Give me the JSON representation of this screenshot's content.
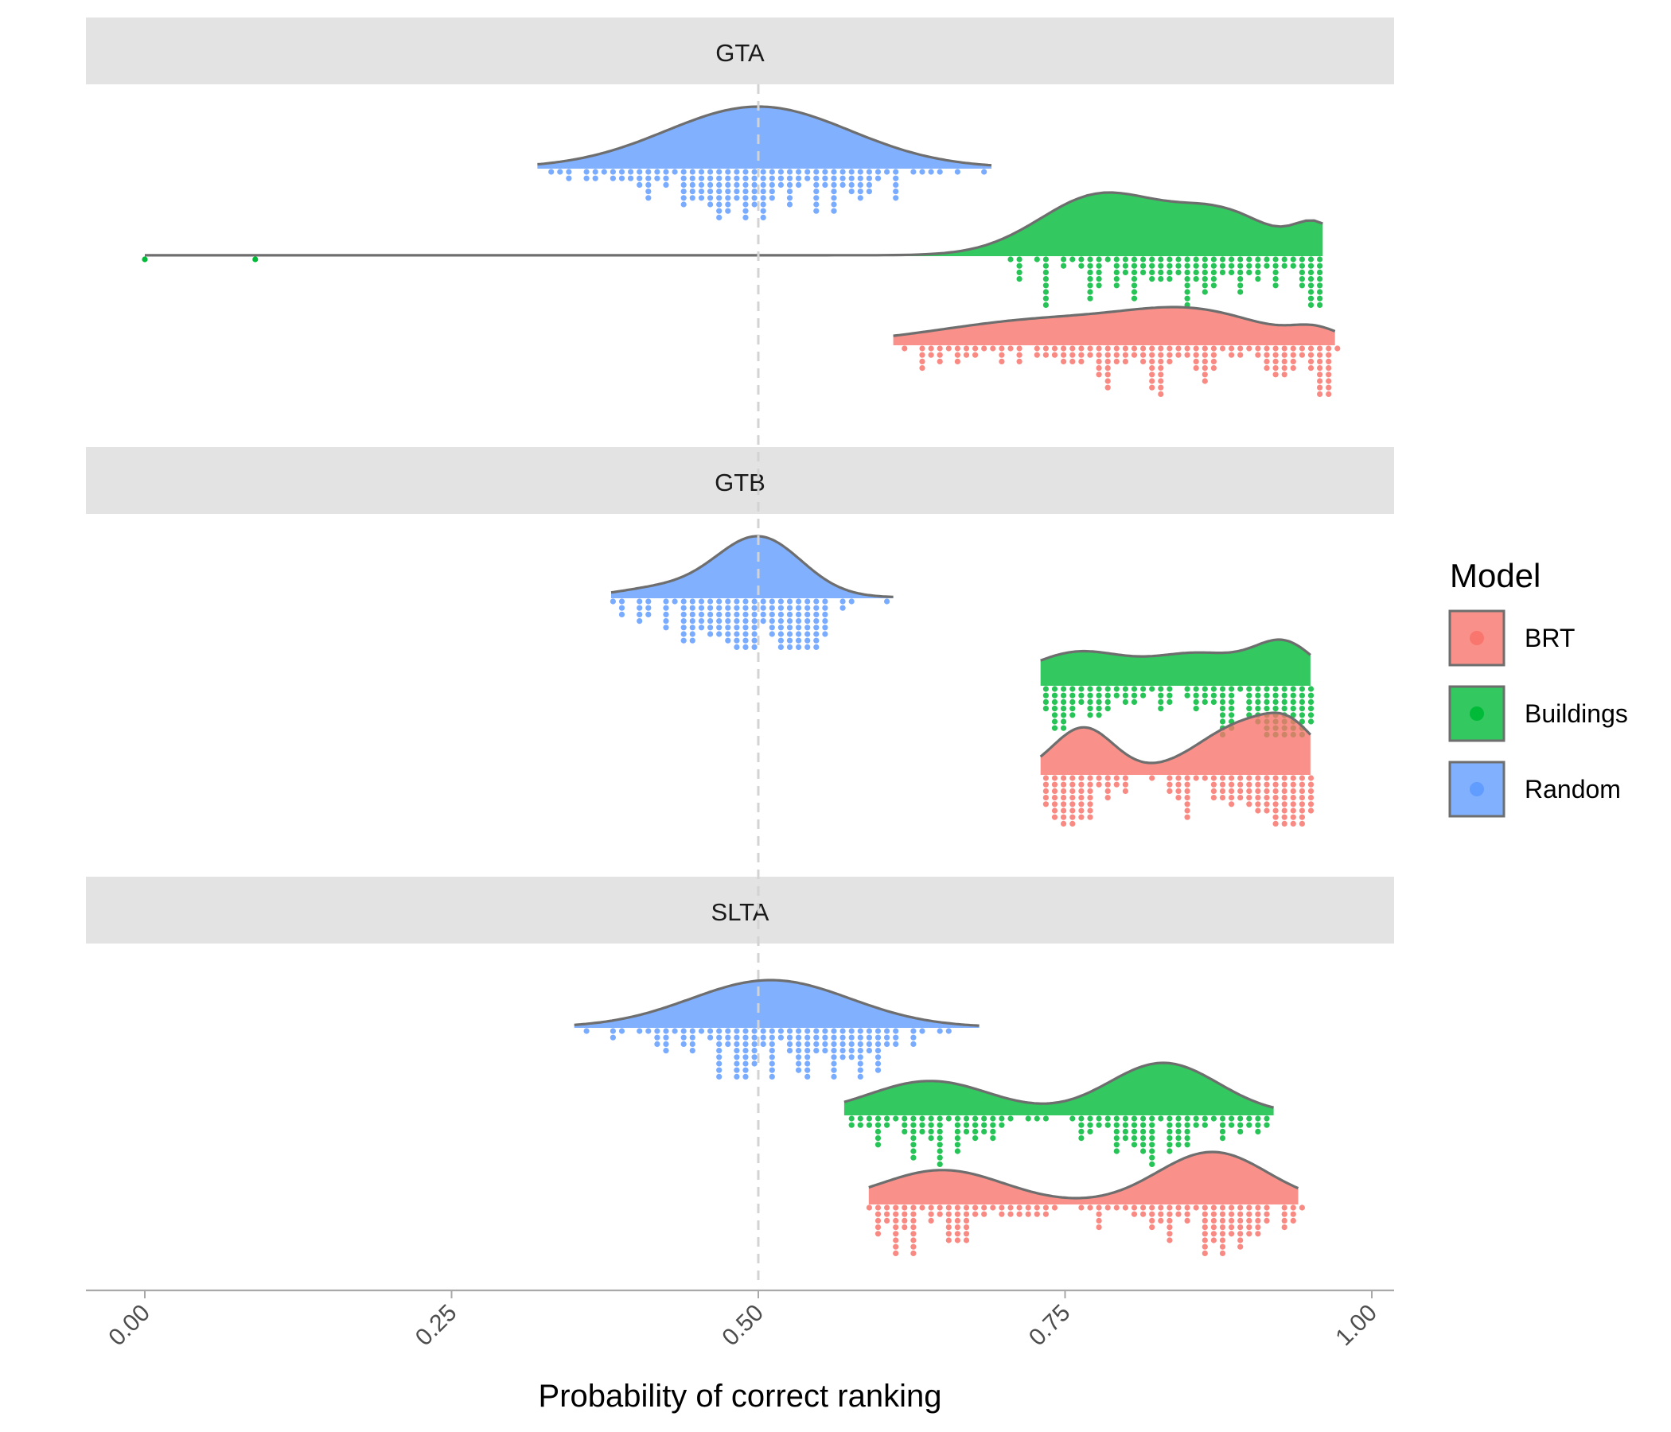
{
  "chart_data": {
    "type": "raincloud",
    "xlabel": "Probability of correct ranking",
    "xlim": [
      0,
      1
    ],
    "xticks": [
      0,
      0.25,
      0.5,
      0.75,
      1
    ],
    "xtick_labels": [
      "0.00",
      "0.25",
      "0.50",
      "0.75",
      "1.00"
    ],
    "reference_line": 0.5,
    "legend": {
      "title": "Model",
      "position": "right",
      "entries": [
        {
          "name": "BRT",
          "color": "#F8766D"
        },
        {
          "name": "Buildings",
          "color": "#00BA38"
        },
        {
          "name": "Random",
          "color": "#619CFF"
        }
      ]
    },
    "panels": [
      {
        "title": "GTA",
        "series": [
          {
            "name": "Random",
            "range": [
              0.32,
              0.69
            ],
            "peak": 0.5
          },
          {
            "name": "Buildings",
            "range": [
              0.0,
              0.96
            ],
            "peak": 0.78,
            "outliers": [
              0.0,
              0.09
            ]
          },
          {
            "name": "BRT",
            "range": [
              0.61,
              0.97
            ],
            "peak": 0.86
          }
        ]
      },
      {
        "title": "GTB",
        "series": [
          {
            "name": "Random",
            "range": [
              0.38,
              0.61
            ],
            "peak": 0.5
          },
          {
            "name": "Buildings",
            "range": [
              0.73,
              0.95
            ],
            "peak": 0.93
          },
          {
            "name": "BRT",
            "range": [
              0.73,
              0.95
            ],
            "peak": 0.93
          }
        ]
      },
      {
        "title": "SLTA",
        "series": [
          {
            "name": "Random",
            "range": [
              0.35,
              0.68
            ],
            "peak": 0.51
          },
          {
            "name": "Buildings",
            "range": [
              0.57,
              0.92
            ],
            "peak": 0.83
          },
          {
            "name": "BRT",
            "range": [
              0.59,
              0.94
            ],
            "peak": 0.87
          }
        ]
      }
    ]
  }
}
